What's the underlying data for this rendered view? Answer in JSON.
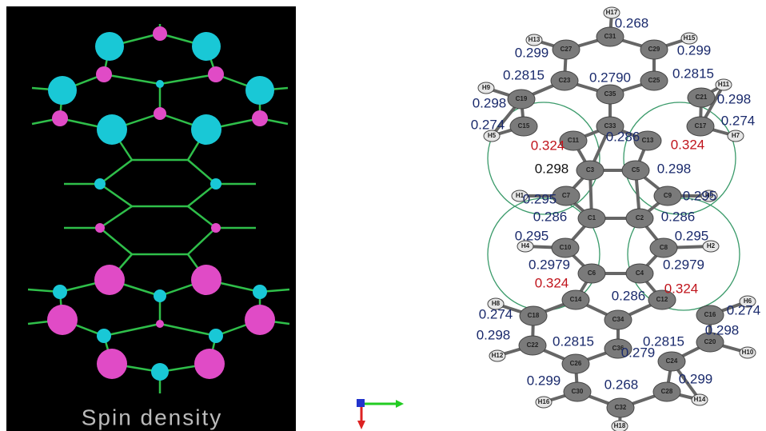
{
  "left_panel": {
    "caption": "Spin density"
  },
  "right_panel": {
    "atoms": [
      "H17",
      "C31",
      "C27",
      "C29",
      "H13",
      "H15",
      "C23",
      "C35",
      "C25",
      "H9",
      "H11",
      "C19",
      "C21",
      "C33",
      "C15",
      "C17",
      "H5",
      "H7",
      "C11",
      "C13",
      "C3",
      "C5",
      "C7",
      "C9",
      "H1",
      "H3",
      "C1",
      "C2",
      "C10",
      "C8",
      "H4",
      "H2",
      "C6",
      "C4",
      "C14",
      "C12",
      "H8",
      "H6",
      "C18",
      "C16",
      "C34",
      "C22",
      "C20",
      "H12",
      "H10",
      "C36",
      "C26",
      "C24",
      "C30",
      "C28",
      "H16",
      "H14",
      "C32",
      "H18"
    ],
    "values": [
      {
        "text": "0.268",
        "color": "#1a2a6c"
      },
      {
        "text": "0.299",
        "color": "#1a2a6c"
      },
      {
        "text": "0.299",
        "color": "#1a2a6c"
      },
      {
        "text": "0.2815",
        "color": "#1a2a6c"
      },
      {
        "text": "0.2790",
        "color": "#1a2a6c"
      },
      {
        "text": "0.2815",
        "color": "#1a2a6c"
      },
      {
        "text": "0.298",
        "color": "#1a2a6c"
      },
      {
        "text": "0.298",
        "color": "#1a2a6c"
      },
      {
        "text": "0.274",
        "color": "#1a2a6c"
      },
      {
        "text": "0.274",
        "color": "#1a2a6c"
      },
      {
        "text": "0.324",
        "color": "#c0141c"
      },
      {
        "text": "0.286",
        "color": "#1a2a6c"
      },
      {
        "text": "0.324",
        "color": "#c0141c"
      },
      {
        "text": "0.298",
        "color": "#111111"
      },
      {
        "text": "0.298",
        "color": "#1a2a6c"
      },
      {
        "text": "0.295",
        "color": "#1a2a6c"
      },
      {
        "text": "0.295",
        "color": "#1a2a6c"
      },
      {
        "text": "0.286",
        "color": "#1a2a6c"
      },
      {
        "text": "0.286",
        "color": "#1a2a6c"
      },
      {
        "text": "0.295",
        "color": "#1a2a6c"
      },
      {
        "text": "0.295",
        "color": "#1a2a6c"
      },
      {
        "text": "0.2979",
        "color": "#1a2a6c"
      },
      {
        "text": "0.2979",
        "color": "#1a2a6c"
      },
      {
        "text": "0.324",
        "color": "#c0141c"
      },
      {
        "text": "0.324",
        "color": "#c0141c"
      },
      {
        "text": "0.286",
        "color": "#1a2a6c"
      },
      {
        "text": "0.274",
        "color": "#1a2a6c"
      },
      {
        "text": "0.274",
        "color": "#1a2a6c"
      },
      {
        "text": "0.298",
        "color": "#1a2a6c"
      },
      {
        "text": "0.298",
        "color": "#1a2a6c"
      },
      {
        "text": "0.2815",
        "color": "#1a2a6c"
      },
      {
        "text": "0.279",
        "color": "#1a2a6c"
      },
      {
        "text": "0.2815",
        "color": "#1a2a6c"
      },
      {
        "text": "0.299",
        "color": "#1a2a6c"
      },
      {
        "text": "0.268",
        "color": "#1a2a6c"
      },
      {
        "text": "0.299",
        "color": "#1a2a6c"
      }
    ]
  }
}
